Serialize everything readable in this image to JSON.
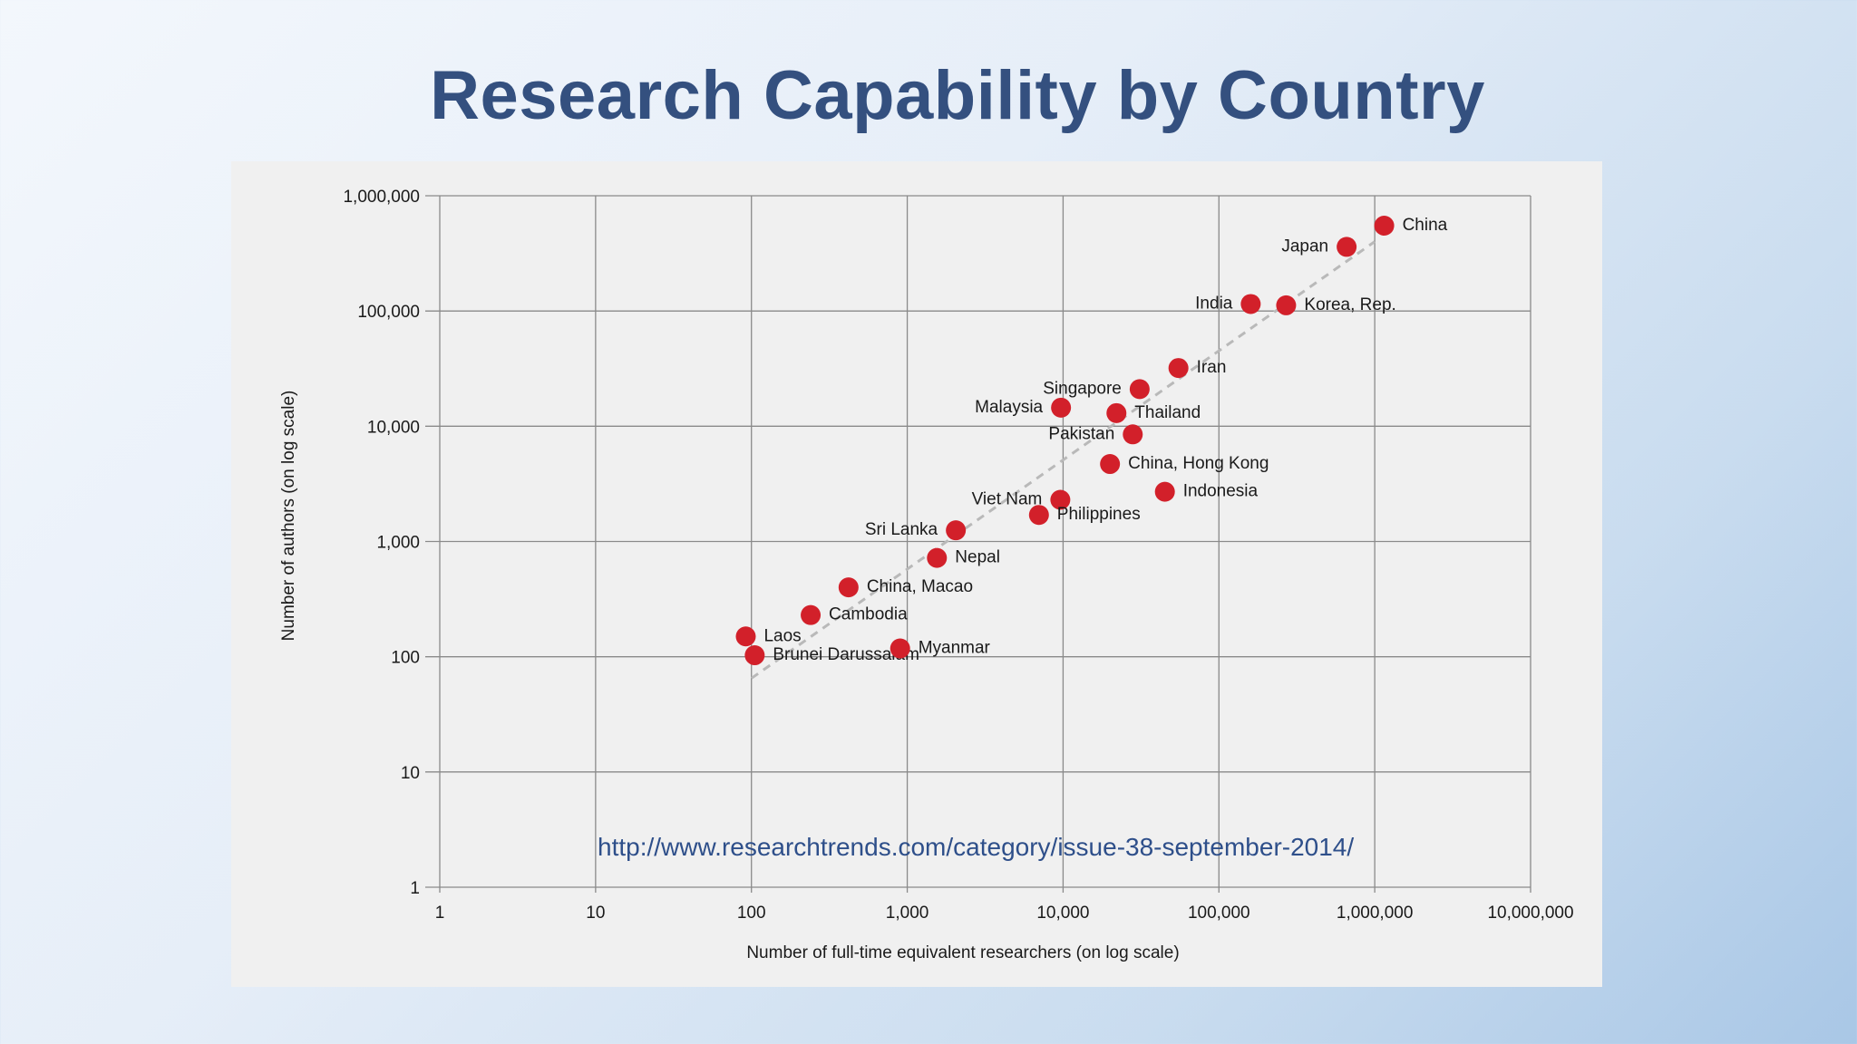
{
  "slide": {
    "title": "Research Capability by Country"
  },
  "chart_data": {
    "type": "scatter",
    "title": "",
    "xlabel": "Number of full-time equivalent researchers (on log scale)",
    "ylabel": "Number of authors (on log scale)",
    "xscale": "log",
    "yscale": "log",
    "xlim": [
      1,
      10000000
    ],
    "ylim": [
      1,
      1000000
    ],
    "grid": true,
    "x_ticks": [
      1,
      10,
      100,
      1000,
      10000,
      100000,
      1000000,
      10000000
    ],
    "x_tick_labels": [
      "1",
      "10",
      "100",
      "1,000",
      "10,000",
      "100,000",
      "1,000,000",
      "10,000,000"
    ],
    "y_ticks": [
      1,
      10,
      100,
      1000,
      10000,
      100000,
      1000000
    ],
    "y_tick_labels": [
      "1",
      "10",
      "100",
      "1,000",
      "10,000",
      "100,000",
      "1,000,000"
    ],
    "point_color": "#d2202a",
    "trendline": {
      "style": "dashed",
      "color": "#b9b9b9",
      "from": [
        100,
        65
      ],
      "to": [
        1000000,
        400000
      ]
    },
    "points": [
      {
        "label": "China",
        "x": 1150000,
        "y": 550000,
        "label_side": "right"
      },
      {
        "label": "Japan",
        "x": 660000,
        "y": 360000,
        "label_side": "left"
      },
      {
        "label": "India",
        "x": 160000,
        "y": 115000,
        "label_side": "left"
      },
      {
        "label": "Korea, Rep.",
        "x": 270000,
        "y": 112000,
        "label_side": "right"
      },
      {
        "label": "Iran",
        "x": 55000,
        "y": 32000,
        "label_side": "right"
      },
      {
        "label": "Singapore",
        "x": 31000,
        "y": 21000,
        "label_side": "left"
      },
      {
        "label": "Malaysia",
        "x": 9700,
        "y": 14500,
        "label_side": "left"
      },
      {
        "label": "Thailand",
        "x": 22000,
        "y": 13000,
        "label_side": "right"
      },
      {
        "label": "Pakistan",
        "x": 28000,
        "y": 8500,
        "label_side": "left"
      },
      {
        "label": "China, Hong Kong",
        "x": 20000,
        "y": 4700,
        "label_side": "right"
      },
      {
        "label": "Indonesia",
        "x": 45000,
        "y": 2700,
        "label_side": "right"
      },
      {
        "label": "Viet Nam",
        "x": 9600,
        "y": 2300,
        "label_side": "left"
      },
      {
        "label": "Philippines",
        "x": 7000,
        "y": 1700,
        "label_side": "right"
      },
      {
        "label": "Sri Lanka",
        "x": 2050,
        "y": 1250,
        "label_side": "left"
      },
      {
        "label": "Nepal",
        "x": 1550,
        "y": 720,
        "label_side": "right"
      },
      {
        "label": "China, Macao",
        "x": 420,
        "y": 400,
        "label_side": "right"
      },
      {
        "label": "Cambodia",
        "x": 240,
        "y": 230,
        "label_side": "right"
      },
      {
        "label": "Laos",
        "x": 92,
        "y": 150,
        "label_side": "right"
      },
      {
        "label": "Brunei Darussalam",
        "x": 105,
        "y": 103,
        "label_side": "right"
      },
      {
        "label": "Myanmar",
        "x": 900,
        "y": 118,
        "label_side": "right"
      }
    ],
    "annotations": [
      {
        "text": "http://www.researchtrends.com/category/issue-38-september-2014/"
      }
    ]
  }
}
